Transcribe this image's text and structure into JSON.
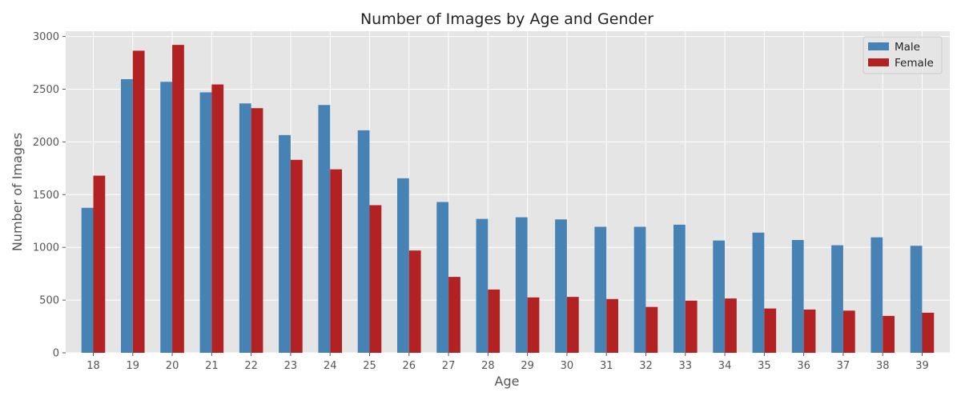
{
  "chart_data": {
    "type": "bar",
    "title": "Number of Images by Age and Gender",
    "xlabel": "Age",
    "ylabel": "Number of Images",
    "categories": [
      "18",
      "19",
      "20",
      "21",
      "22",
      "23",
      "24",
      "25",
      "26",
      "27",
      "28",
      "29",
      "30",
      "31",
      "32",
      "33",
      "34",
      "35",
      "36",
      "37",
      "38",
      "39"
    ],
    "series": [
      {
        "name": "Male",
        "color": "#4682b4",
        "values": [
          1375,
          2595,
          2570,
          2470,
          2365,
          2065,
          2350,
          2110,
          1655,
          1430,
          1270,
          1285,
          1265,
          1195,
          1195,
          1215,
          1065,
          1140,
          1070,
          1020,
          1095,
          1015
        ]
      },
      {
        "name": "Female",
        "color": "#b22222",
        "values": [
          1680,
          2865,
          2920,
          2545,
          2320,
          1830,
          1740,
          1400,
          970,
          720,
          600,
          525,
          530,
          510,
          435,
          495,
          515,
          420,
          410,
          400,
          350,
          380
        ]
      }
    ],
    "ylim": [
      0,
      3050
    ],
    "yticks": [
      0,
      500,
      1000,
      1500,
      2000,
      2500,
      3000
    ],
    "grid": true,
    "legend_position": "top-right",
    "plot_background": "#e5e5e5",
    "grid_color": "#ffffff"
  }
}
